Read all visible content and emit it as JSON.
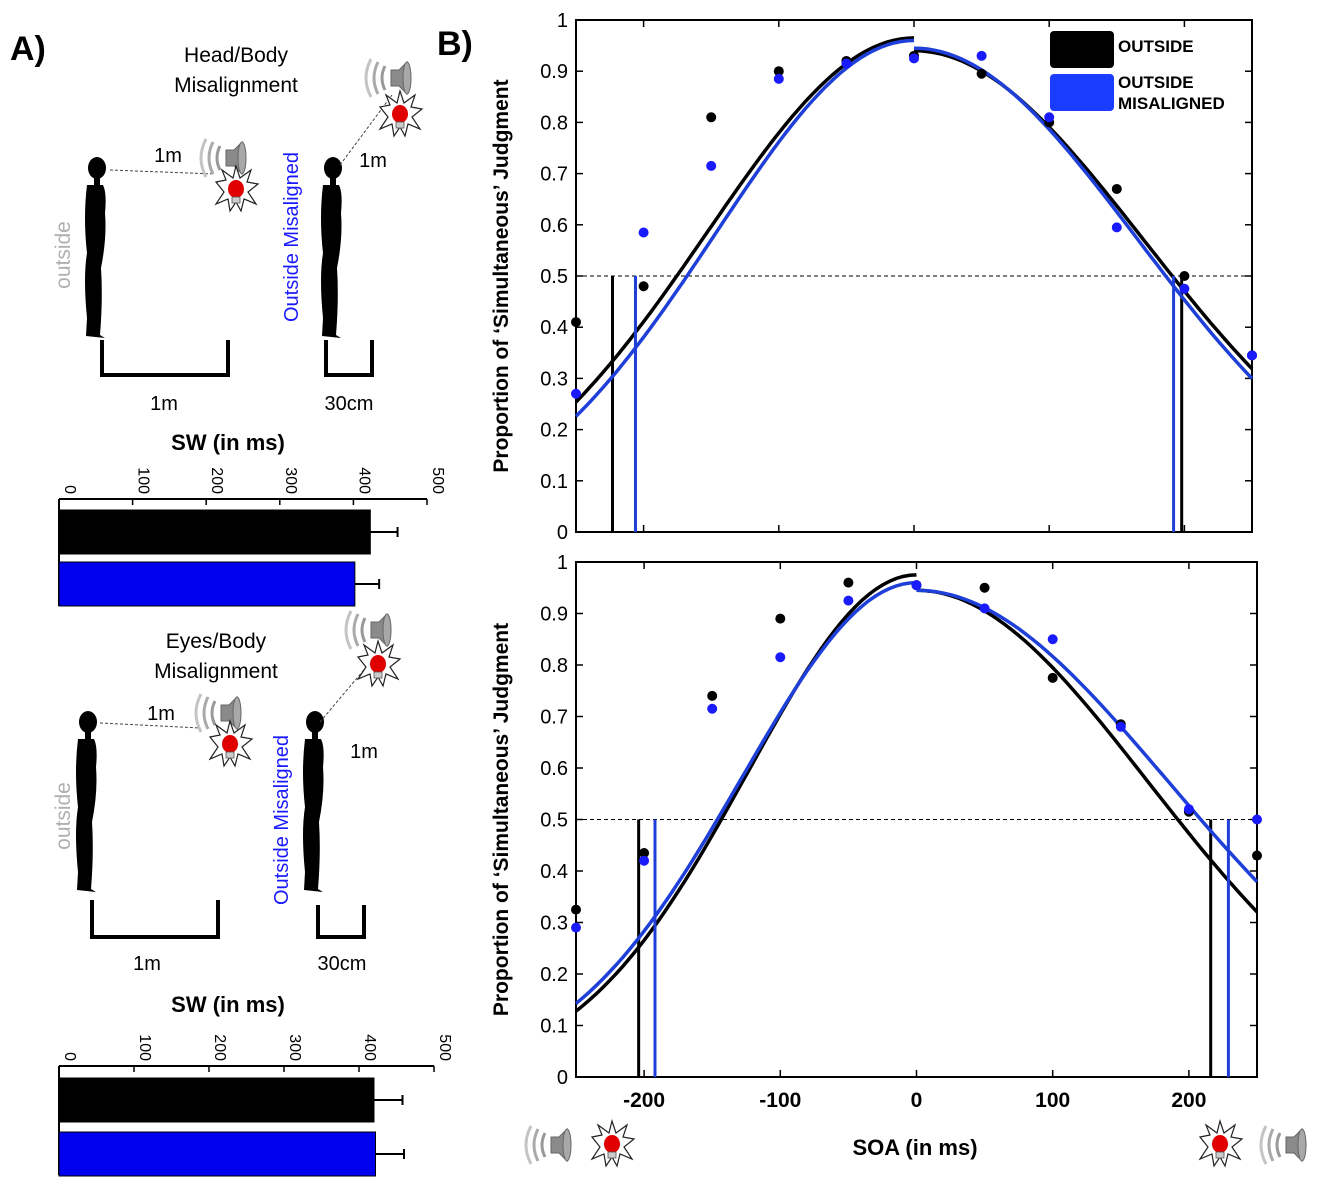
{
  "panel_labels": {
    "a": "A)",
    "b": "B)"
  },
  "colors": {
    "outside": "#000000",
    "misaligned": "#1a1aff",
    "misaligned_line": "#1f3fd9",
    "label_grey": "#b0b0b0",
    "lamp": "#e00000"
  },
  "diagrams": [
    {
      "title_line1": "Head/Body",
      "title_line2": "Misalignment",
      "outside_label": "outside",
      "misaligned_label": "Outside Misaligned",
      "distance_outside": "1m",
      "distance_misaligned": "1m",
      "width_outside": "1m",
      "width_misaligned": "30cm",
      "icons": [
        "silhouette-icon",
        "speaker-icon",
        "lightbulb-icon"
      ]
    },
    {
      "title_line1": "Eyes/Body",
      "title_line2": "Misalignment",
      "outside_label": "outside",
      "misaligned_label": "Outside Misaligned",
      "distance_outside": "1m",
      "distance_misaligned": "1m",
      "width_outside": "1m",
      "width_misaligned": "30cm",
      "icons": [
        "silhouette-icon",
        "speaker-icon",
        "lightbulb-icon"
      ]
    }
  ],
  "legend": {
    "outside": "OUTSIDE",
    "misaligned_line1": "OUTSIDE",
    "misaligned_line2": "MISALIGNED"
  },
  "chart_data": [
    {
      "type": "bar",
      "orientation": "horizontal",
      "title": "SW (in ms)",
      "xlim": [
        0,
        500
      ],
      "ticks": [
        0,
        100,
        200,
        300,
        400,
        500
      ],
      "categories": [
        "OUTSIDE",
        "OUTSIDE MISALIGNED"
      ],
      "values": [
        423,
        402
      ],
      "errors": [
        37,
        33
      ],
      "colors": [
        "#000000",
        "#0000ee"
      ]
    },
    {
      "type": "bar",
      "orientation": "horizontal",
      "title": "SW (in ms)",
      "xlim": [
        0,
        500
      ],
      "ticks": [
        0,
        100,
        200,
        300,
        400,
        500
      ],
      "categories": [
        "OUTSIDE",
        "OUTSIDE MISALIGNED"
      ],
      "values": [
        420,
        422
      ],
      "errors": [
        38,
        38
      ],
      "colors": [
        "#000000",
        "#0000ee"
      ]
    },
    {
      "type": "scatter",
      "ylabel": "Proportion of ‘Simultaneous’ Judgment",
      "xlim": [
        -250,
        250
      ],
      "ylim": [
        0,
        1
      ],
      "yticks": [
        0,
        0.1,
        0.2,
        0.3,
        0.4,
        0.5,
        0.6,
        0.7,
        0.8,
        0.9,
        1
      ],
      "ytick_labels": [
        "0",
        "0.1",
        "0.2",
        "0.3",
        "0.4",
        "0.5",
        "0.6",
        "0.7",
        "0.8",
        "0.9",
        "1"
      ],
      "threshold": 0.5,
      "x": [
        -250,
        -200,
        -150,
        -100,
        -50,
        0,
        50,
        100,
        150,
        200,
        250
      ],
      "series": [
        {
          "name": "OUTSIDE",
          "points": [
            0.41,
            0.48,
            0.81,
            0.9,
            0.92,
            0.93,
            0.895,
            0.8,
            0.67,
            0.5,
            0.345
          ],
          "fit_left": {
            "peak": 0.965,
            "sigma": 153
          },
          "fit_right": {
            "peak": 0.94,
            "sigma": 170
          },
          "boundaries": [
            -223,
            198
          ]
        },
        {
          "name": "OUTSIDE MISALIGNED",
          "points": [
            0.27,
            0.585,
            0.715,
            0.885,
            0.915,
            0.925,
            0.93,
            0.81,
            0.595,
            0.475,
            0.345
          ],
          "fit_left": {
            "peak": 0.96,
            "sigma": 147
          },
          "fit_right": {
            "peak": 0.945,
            "sigma": 165
          },
          "boundaries": [
            -206,
            192
          ]
        }
      ]
    },
    {
      "type": "scatter",
      "ylabel": "Proportion of ‘Simultaneous’ Judgment",
      "xlabel": "SOA (in ms)",
      "xlim": [
        -250,
        250
      ],
      "ylim": [
        0,
        1
      ],
      "xticks": [
        -200,
        -100,
        0,
        100,
        200
      ],
      "xtick_labels": [
        "-200",
        "-100",
        "0",
        "100",
        "200"
      ],
      "yticks": [
        0,
        0.1,
        0.2,
        0.3,
        0.4,
        0.5,
        0.6,
        0.7,
        0.8,
        0.9,
        1
      ],
      "ytick_labels": [
        "0",
        "0.1",
        "0.2",
        "0.3",
        "0.4",
        "0.5",
        "0.6",
        "0.7",
        "0.8",
        "0.9",
        "1"
      ],
      "threshold": 0.5,
      "x": [
        -250,
        -200,
        -150,
        -100,
        -50,
        0,
        50,
        100,
        150,
        200,
        250
      ],
      "series": [
        {
          "name": "OUTSIDE",
          "points": [
            0.325,
            0.435,
            0.74,
            0.89,
            0.96,
            0.955,
            0.95,
            0.775,
            0.685,
            0.515,
            0.43
          ],
          "fit_left": {
            "peak": 0.975,
            "sigma": 124
          },
          "fit_right": {
            "peak": 0.945,
            "sigma": 170
          },
          "boundaries": [
            -204,
            216
          ]
        },
        {
          "name": "OUTSIDE MISALIGNED",
          "points": [
            0.29,
            0.42,
            0.715,
            0.815,
            0.925,
            0.955,
            0.91,
            0.85,
            0.68,
            0.52,
            0.5
          ],
          "fit_left": {
            "peak": 0.96,
            "sigma": 128
          },
          "fit_right": {
            "peak": 0.945,
            "sigma": 185
          },
          "boundaries": [
            -192,
            229
          ]
        }
      ]
    }
  ]
}
